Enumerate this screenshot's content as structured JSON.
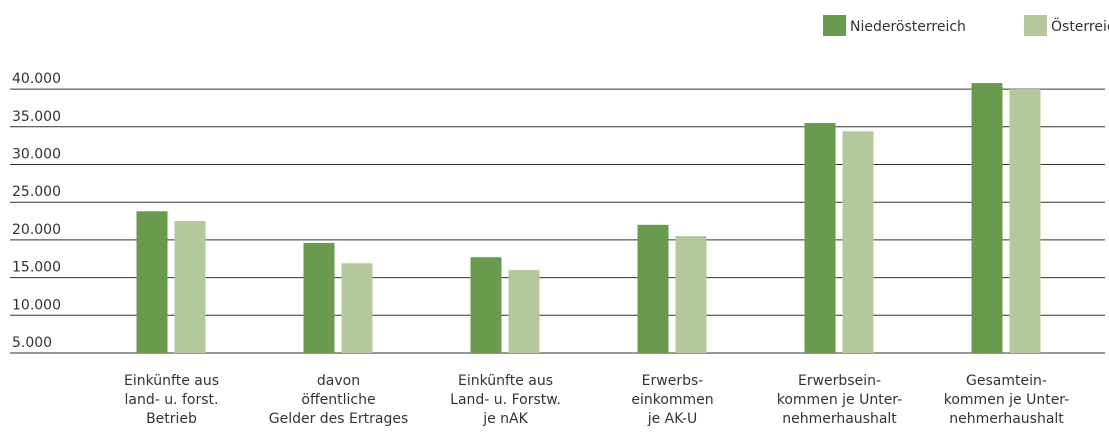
{
  "chart_data": {
    "type": "bar",
    "categories": [
      [
        "Einkünfte aus",
        "land- u. forst.",
        "Betrieb"
      ],
      [
        "davon",
        "öffentliche",
        "Gelder des Ertrages"
      ],
      [
        "Einkünfte aus",
        "Land- u. Forstw.",
        "je nAK"
      ],
      [
        "Erwerbs-",
        "einkommen",
        "je AK-U"
      ],
      [
        "Erwerbsein-",
        "kommen je Unter-",
        "nehmerhaushalt"
      ],
      [
        "Gesamtein-",
        "kommen je Unter-",
        "nehmerhaushalt"
      ]
    ],
    "series": [
      {
        "name": "Niederösterreich",
        "color": "#6a9a4e",
        "values": [
          23800,
          19600,
          17700,
          22000,
          35500,
          40800
        ]
      },
      {
        "name": "Österreich",
        "color": "#b3c89b",
        "values": [
          22500,
          16900,
          16000,
          20500,
          34400,
          40000
        ]
      }
    ],
    "ylim": [
      5000,
      42000
    ],
    "yticks": [
      {
        "value": 5000,
        "label": "5.000"
      },
      {
        "value": 10000,
        "label": "10.000"
      },
      {
        "value": 15000,
        "label": "15.000"
      },
      {
        "value": 20000,
        "label": "20.000"
      },
      {
        "value": 25000,
        "label": "25.000"
      },
      {
        "value": 30000,
        "label": "30.000"
      },
      {
        "value": 35000,
        "label": "35.000"
      },
      {
        "value": 40000,
        "label": "40.000"
      }
    ],
    "grid": true,
    "legend": "top-right"
  }
}
